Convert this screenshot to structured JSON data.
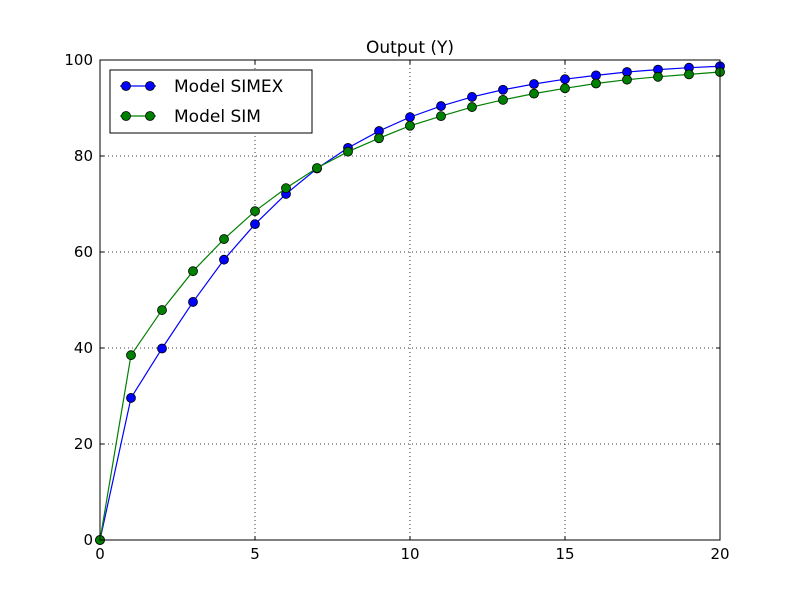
{
  "chart_data": {
    "type": "line",
    "title": "Output (Y)",
    "xlabel": "",
    "ylabel": "",
    "xlim": [
      0,
      20
    ],
    "ylim": [
      0,
      100
    ],
    "xticks": [
      0,
      5,
      10,
      15,
      20
    ],
    "yticks": [
      0,
      20,
      40,
      60,
      80,
      100
    ],
    "grid": true,
    "legend_position": "top-left",
    "x": [
      0,
      1,
      2,
      3,
      4,
      5,
      6,
      7,
      8,
      9,
      10,
      11,
      12,
      13,
      14,
      15,
      16,
      17,
      18,
      19,
      20
    ],
    "series": [
      {
        "name": "Model SIMEX",
        "color": "#0000ff",
        "values": [
          0,
          29.6,
          39.9,
          49.6,
          58.4,
          65.8,
          72.1,
          77.4,
          81.7,
          85.2,
          88.1,
          90.4,
          92.3,
          93.8,
          95.0,
          96.0,
          96.8,
          97.5,
          98.0,
          98.4,
          98.7
        ]
      },
      {
        "name": "Model SIM",
        "color": "#008000",
        "values": [
          0,
          38.5,
          47.9,
          56.0,
          62.7,
          68.5,
          73.3,
          77.5,
          80.9,
          83.7,
          86.3,
          88.3,
          90.2,
          91.7,
          93.0,
          94.1,
          95.1,
          95.9,
          96.5,
          97.0,
          97.5
        ]
      }
    ]
  }
}
